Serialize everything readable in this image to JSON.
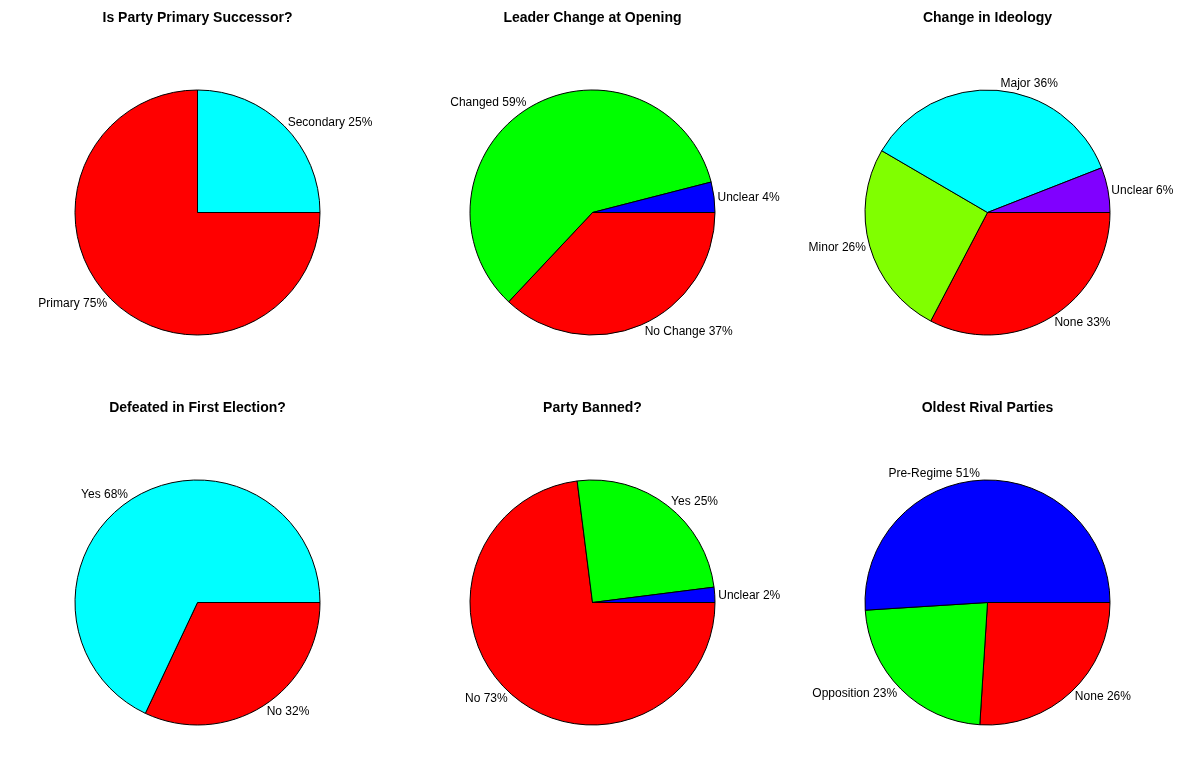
{
  "chart_data": [
    {
      "type": "pie",
      "title": "Is Party Primary Successor?",
      "categories": [
        "Primary",
        "Secondary"
      ],
      "values": [
        75,
        25
      ],
      "value_labels": [
        "75%",
        "25%"
      ],
      "colors": [
        "#ff0000",
        "#00ffff"
      ]
    },
    {
      "type": "pie",
      "title": "Leader Change at Opening",
      "categories": [
        "No Change",
        "Changed",
        "Unclear"
      ],
      "values": [
        37,
        59,
        4
      ],
      "value_labels": [
        "37%",
        "59%",
        "4%"
      ],
      "colors": [
        "#ff0000",
        "#00ff00",
        "#0000ff"
      ]
    },
    {
      "type": "pie",
      "title": "Change in Ideology",
      "categories": [
        "None",
        "Minor",
        "Major",
        "Unclear"
      ],
      "values": [
        33,
        26,
        36,
        6
      ],
      "value_labels": [
        "33%",
        "26%",
        "36%",
        "6%"
      ],
      "colors": [
        "#ff0000",
        "#80ff00",
        "#00ffff",
        "#8000ff"
      ]
    },
    {
      "type": "pie",
      "title": "Defeated in First Election?",
      "categories": [
        "No",
        "Yes"
      ],
      "values": [
        32,
        68
      ],
      "value_labels": [
        "32%",
        "68%"
      ],
      "colors": [
        "#ff0000",
        "#00ffff"
      ]
    },
    {
      "type": "pie",
      "title": "Party Banned?",
      "categories": [
        "No",
        "Yes",
        "Unclear"
      ],
      "values": [
        73,
        25,
        2
      ],
      "value_labels": [
        "73%",
        "25%",
        "2%"
      ],
      "colors": [
        "#ff0000",
        "#00ff00",
        "#0000ff"
      ]
    },
    {
      "type": "pie",
      "title": "Oldest Rival Parties",
      "categories": [
        "None",
        "Opposition",
        "Pre-Regime"
      ],
      "values": [
        26,
        23,
        51
      ],
      "value_labels": [
        "26%",
        "23%",
        "51%"
      ],
      "colors": [
        "#ff0000",
        "#00ff00",
        "#0000ff"
      ]
    }
  ]
}
